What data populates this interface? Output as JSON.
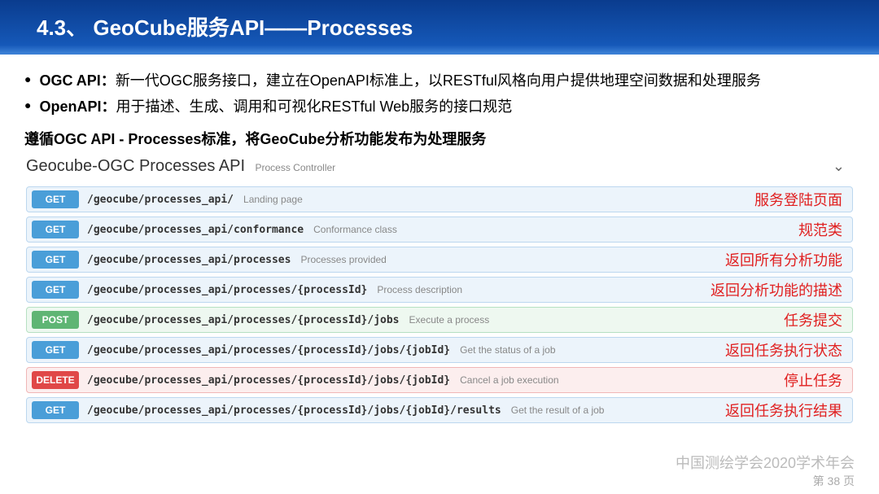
{
  "header": {
    "title": "4.3、 GeoCube服务API——Processes"
  },
  "bullets": [
    {
      "label": "OGC API：",
      "text": "新一代OGC服务接口，建立在OpenAPI标准上，以RESTful风格向用户提供地理空间数据和处理服务"
    },
    {
      "label": "OpenAPI：",
      "text": "用于描述、生成、调用和可视化RESTful Web服务的接口规范"
    }
  ],
  "subheading": "遵循OGC API - Processes标准，将GeoCube分析功能发布为处理服务",
  "api": {
    "title": "Geocube-OGC Processes API",
    "subtitle": "Process Controller",
    "rows": [
      {
        "method": "GET",
        "kind": "get",
        "path": "/geocube/processes_api/",
        "desc": "Landing page",
        "note": "服务登陆页面"
      },
      {
        "method": "GET",
        "kind": "get",
        "path": "/geocube/processes_api/conformance",
        "desc": "Conformance class",
        "note": "规范类"
      },
      {
        "method": "GET",
        "kind": "get",
        "path": "/geocube/processes_api/processes",
        "desc": "Processes provided",
        "note": "返回所有分析功能"
      },
      {
        "method": "GET",
        "kind": "get",
        "path": "/geocube/processes_api/processes/{processId}",
        "desc": "Process description",
        "note": "返回分析功能的描述"
      },
      {
        "method": "POST",
        "kind": "post",
        "path": "/geocube/processes_api/processes/{processId}/jobs",
        "desc": "Execute a process",
        "note": "任务提交"
      },
      {
        "method": "GET",
        "kind": "get",
        "path": "/geocube/processes_api/processes/{processId}/jobs/{jobId}",
        "desc": "Get the status of a job",
        "note": "返回任务执行状态"
      },
      {
        "method": "DELETE",
        "kind": "del",
        "path": "/geocube/processes_api/processes/{processId}/jobs/{jobId}",
        "desc": "Cancel a job execution",
        "note": "停止任务"
      },
      {
        "method": "GET",
        "kind": "get",
        "path": "/geocube/processes_api/processes/{processId}/jobs/{jobId}/results",
        "desc": "Get the result of a job",
        "note": "返回任务执行结果"
      }
    ]
  },
  "footer": {
    "org": "中国测绘学会2020学术年会",
    "page": "第 38 页"
  },
  "colors": {
    "header_bg_top": "#0a3c8e",
    "header_bg_bottom": "#1558b8",
    "get_bg": "#ecf4fb",
    "get_border": "#bcd7ef",
    "get_method": "#4a9ed8",
    "post_bg": "#eef8f0",
    "post_border": "#b6e0c2",
    "post_method": "#5fb574",
    "del_bg": "#fceeee",
    "del_border": "#f0b6b6",
    "del_method": "#e04848",
    "note_color": "#e02020"
  }
}
